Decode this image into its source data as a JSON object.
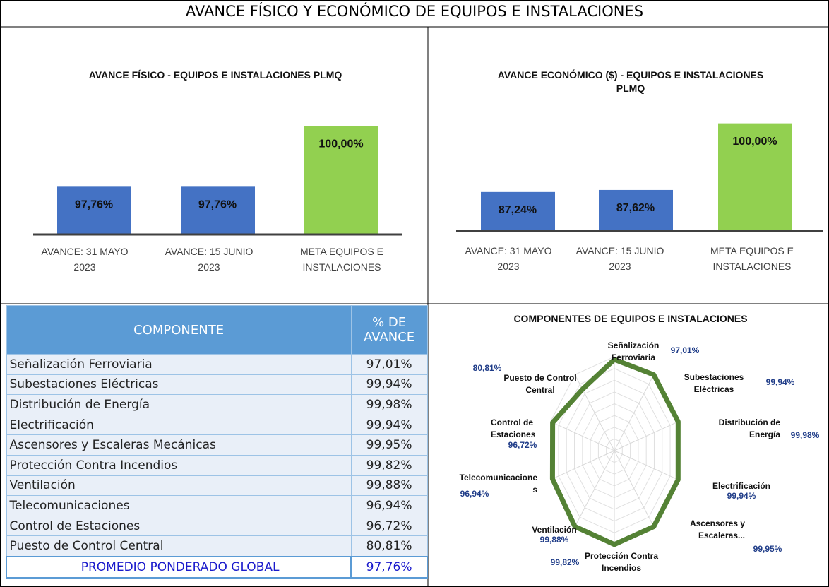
{
  "title": "AVANCE FÍSICO Y ECONÓMICO DE EQUIPOS E INSTALACIONES",
  "chart_data": [
    {
      "type": "bar",
      "title": "AVANCE FÍSICO - EQUIPOS E INSTALACIONES PLMQ",
      "categories": [
        "AVANCE: 31 MAYO 2023",
        "AVANCE: 15 JUNIO 2023",
        "META EQUIPOS E INSTALACIONES"
      ],
      "values": [
        97.76,
        97.76,
        100
      ],
      "value_labels": [
        "97,76%",
        "97,76%",
        "100,00%"
      ],
      "colors": [
        "#4472c4",
        "#4472c4",
        "#92d050"
      ],
      "ylim": [
        96,
        100.5
      ]
    },
    {
      "type": "bar",
      "title": "AVANCE ECONÓMICO ($) - EQUIPOS E INSTALACIONES PLMQ",
      "categories": [
        "AVANCE: 31 MAYO 2023",
        "AVANCE: 15 JUNIO 2023",
        "META EQUIPOS E INSTALACIONES"
      ],
      "values": [
        87.24,
        87.62,
        100
      ],
      "value_labels": [
        "87,24%",
        "87,62%",
        "100,00%"
      ],
      "colors": [
        "#4472c4",
        "#4472c4",
        "#92d050"
      ],
      "ylim": [
        80,
        101
      ]
    },
    {
      "type": "radar",
      "title": "COMPONENTES DE EQUIPOS E INSTALACIONES",
      "categories": [
        "Señalización Ferroviaria",
        "Subestaciones Eléctricas",
        "Distribución de Energía",
        "Electrificación",
        "Ascensores y Escaleras...",
        "Protección Contra Incendios",
        "Ventilación",
        "Telecomunicaciones",
        "Control de Estaciones",
        "Puesto de Control Central"
      ],
      "values": [
        97.01,
        99.94,
        99.98,
        99.94,
        99.95,
        99.82,
        99.88,
        96.94,
        96.72,
        80.81
      ],
      "value_labels": [
        "97,01%",
        "99,94%",
        "99,98%",
        "99,94%",
        "99,95%",
        "99,82%",
        "99,88%",
        "96,94%",
        "96,72%",
        "80,81%"
      ],
      "color": "#548235",
      "rlim": [
        0,
        100
      ],
      "grid": true
    }
  ],
  "table": {
    "header": [
      "COMPONENTE",
      "% DE AVANCE"
    ],
    "rows": [
      [
        "Señalización Ferroviaria",
        "97,01%"
      ],
      [
        "Subestaciones Eléctricas",
        "99,94%"
      ],
      [
        "Distribución de Energía",
        "99,98%"
      ],
      [
        "Electrificación",
        "99,94%"
      ],
      [
        "Ascensores y Escaleras Mecánicas",
        "99,95%"
      ],
      [
        "Protección Contra Incendios",
        "99,82%"
      ],
      [
        "Ventilación",
        "99,88%"
      ],
      [
        "Telecomunicaciones",
        "96,94%"
      ],
      [
        "Control de Estaciones",
        "96,72%"
      ],
      [
        "Puesto de Control Central",
        "80,81%"
      ]
    ],
    "total": [
      "PROMEDIO PONDERADO GLOBAL",
      "97,76%"
    ]
  }
}
